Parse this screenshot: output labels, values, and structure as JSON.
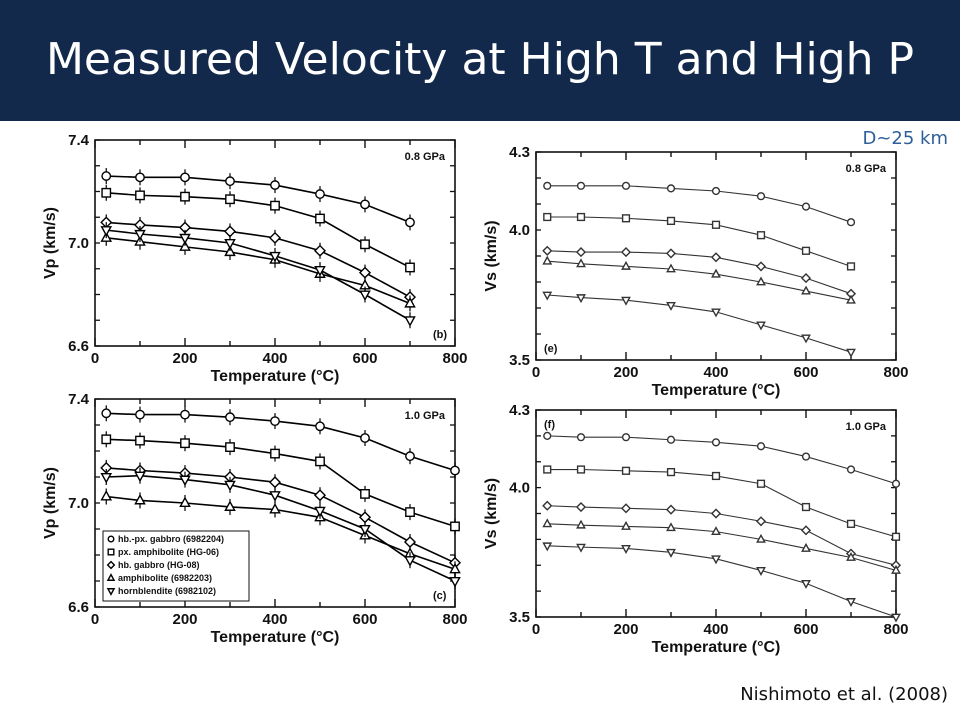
{
  "slide": {
    "title": "Measured Velocity at High T and High P",
    "depth_note": "D~25 km",
    "citation": "Nishimoto et al. (2008)",
    "colors": {
      "header_bg": "#13294b",
      "title_text": "#ffffff",
      "depth_note": "#2e5f9a"
    }
  },
  "chart_data": [
    {
      "id": "b",
      "type": "line",
      "panel_label": "(b)",
      "pressure_label": "0.8 GPa",
      "xlabel": "Temperature (°C)",
      "ylabel": "Vp (km/s)",
      "xlim": [
        0,
        800
      ],
      "ylim": [
        6.6,
        7.4
      ],
      "xticks": [
        "0",
        "200",
        "400",
        "600",
        "800"
      ],
      "yticks": [
        {
          "v": 6.6,
          "label": "6.6"
        },
        {
          "v": 7.0,
          "label": "7.0"
        },
        {
          "v": 7.4,
          "label": "7.4"
        }
      ],
      "grid": false,
      "series": [
        {
          "marker": "circle",
          "x": [
            25,
            100,
            200,
            300,
            400,
            500,
            600,
            700
          ],
          "y": [
            7.26,
            7.255,
            7.255,
            7.24,
            7.225,
            7.19,
            7.15,
            7.08
          ]
        },
        {
          "marker": "square",
          "x": [
            25,
            100,
            200,
            300,
            400,
            500,
            600,
            700
          ],
          "y": [
            7.195,
            7.185,
            7.18,
            7.17,
            7.145,
            7.095,
            6.995,
            6.905
          ]
        },
        {
          "marker": "diamond",
          "x": [
            25,
            100,
            200,
            300,
            400,
            500,
            600,
            700
          ],
          "y": [
            7.08,
            7.07,
            7.06,
            7.045,
            7.02,
            6.97,
            6.885,
            6.79
          ]
        },
        {
          "marker": "triangle-up",
          "x": [
            25,
            100,
            200,
            300,
            400,
            500,
            600,
            700
          ],
          "y": [
            7.02,
            7.005,
            6.985,
            6.965,
            6.935,
            6.88,
            6.835,
            6.765
          ]
        },
        {
          "marker": "triangle-down",
          "x": [
            25,
            100,
            200,
            300,
            400,
            500,
            600,
            700
          ],
          "y": [
            7.05,
            7.035,
            7.02,
            7.0,
            6.95,
            6.895,
            6.8,
            6.7
          ]
        }
      ]
    },
    {
      "id": "e",
      "type": "line",
      "panel_label": "(e)",
      "pressure_label": "0.8 GPa",
      "xlabel": "Temperature (°C)",
      "ylabel": "Vs (km/s)",
      "xlim": [
        0,
        800
      ],
      "ylim": [
        3.5,
        4.3
      ],
      "xticks": [
        "0",
        "200",
        "400",
        "600",
        "800"
      ],
      "yticks": [
        {
          "v": 3.5,
          "label": "3.5"
        },
        {
          "v": 4.0,
          "label": "4.0"
        },
        {
          "v": 4.3,
          "label": "4.3"
        }
      ],
      "grid": false,
      "series": [
        {
          "marker": "circle",
          "x": [
            25,
            100,
            200,
            300,
            400,
            500,
            600,
            700
          ],
          "y": [
            4.17,
            4.17,
            4.17,
            4.16,
            4.15,
            4.13,
            4.09,
            4.03
          ]
        },
        {
          "marker": "square",
          "x": [
            25,
            100,
            200,
            300,
            400,
            500,
            600,
            700
          ],
          "y": [
            4.05,
            4.05,
            4.045,
            4.035,
            4.02,
            3.98,
            3.92,
            3.86
          ]
        },
        {
          "marker": "diamond",
          "x": [
            25,
            100,
            200,
            300,
            400,
            500,
            600,
            700
          ],
          "y": [
            3.92,
            3.915,
            3.915,
            3.91,
            3.895,
            3.86,
            3.815,
            3.755
          ]
        },
        {
          "marker": "triangle-up",
          "x": [
            25,
            100,
            200,
            300,
            400,
            500,
            600,
            700
          ],
          "y": [
            3.88,
            3.87,
            3.86,
            3.85,
            3.83,
            3.8,
            3.765,
            3.73
          ]
        },
        {
          "marker": "triangle-down",
          "x": [
            25,
            100,
            200,
            300,
            400,
            500,
            600,
            700
          ],
          "y": [
            3.75,
            3.74,
            3.73,
            3.71,
            3.685,
            3.635,
            3.585,
            3.53
          ]
        }
      ]
    },
    {
      "id": "c",
      "type": "line",
      "panel_label": "(c)",
      "pressure_label": "1.0 GPa",
      "xlabel": "Temperature (°C)",
      "ylabel": "Vp (km/s)",
      "xlim": [
        0,
        800
      ],
      "ylim": [
        6.6,
        7.4
      ],
      "xticks": [
        "0",
        "200",
        "400",
        "600",
        "800"
      ],
      "yticks": [
        {
          "v": 6.6,
          "label": "6.6"
        },
        {
          "v": 7.0,
          "label": "7.0"
        },
        {
          "v": 7.4,
          "label": "7.4"
        }
      ],
      "grid": false,
      "legend_position": "bottom-left",
      "legend": [
        "hb.-px. gabbro (6982204)",
        "px. amphibolite (HG-06)",
        "hb. gabbro (HG-08)",
        "amphibolite (6982203)",
        "hornblendite (6982102)"
      ],
      "series": [
        {
          "name": "hb.-px. gabbro (6982204)",
          "marker": "circle",
          "x": [
            25,
            100,
            200,
            300,
            400,
            500,
            600,
            700,
            800
          ],
          "y": [
            7.345,
            7.34,
            7.34,
            7.33,
            7.315,
            7.295,
            7.25,
            7.18,
            7.125
          ]
        },
        {
          "name": "px. amphibolite (HG-06)",
          "marker": "square",
          "x": [
            25,
            100,
            200,
            300,
            400,
            500,
            600,
            700,
            800
          ],
          "y": [
            7.245,
            7.24,
            7.23,
            7.215,
            7.19,
            7.16,
            7.035,
            6.965,
            6.91
          ]
        },
        {
          "name": "hb. gabbro (HG-08)",
          "marker": "diamond",
          "x": [
            25,
            100,
            200,
            300,
            400,
            500,
            600,
            700,
            800
          ],
          "y": [
            7.135,
            7.125,
            7.115,
            7.1,
            7.08,
            7.03,
            6.945,
            6.85,
            6.77
          ]
        },
        {
          "name": "amphibolite (6982203)",
          "marker": "triangle-up",
          "x": [
            25,
            100,
            200,
            300,
            400,
            500,
            600,
            700,
            800
          ],
          "y": [
            7.025,
            7.01,
            7.0,
            6.985,
            6.975,
            6.945,
            6.875,
            6.805,
            6.745
          ]
        },
        {
          "name": "hornblendite (6982102)",
          "marker": "triangle-down",
          "x": [
            25,
            100,
            200,
            300,
            400,
            500,
            600,
            700,
            800
          ],
          "y": [
            7.1,
            7.105,
            7.09,
            7.07,
            7.03,
            6.97,
            6.9,
            6.78,
            6.7
          ]
        }
      ]
    },
    {
      "id": "f",
      "type": "line",
      "panel_label": "(f)",
      "pressure_label": "1.0 GPa",
      "xlabel": "Temperature (°C)",
      "ylabel": "Vs (km/s)",
      "xlim": [
        0,
        800
      ],
      "ylim": [
        3.5,
        4.3
      ],
      "xticks": [
        "0",
        "200",
        "400",
        "600",
        "800"
      ],
      "yticks": [
        {
          "v": 3.5,
          "label": "3.5"
        },
        {
          "v": 4.0,
          "label": "4.0"
        },
        {
          "v": 4.3,
          "label": "4.3"
        }
      ],
      "grid": false,
      "series": [
        {
          "marker": "circle",
          "x": [
            25,
            100,
            200,
            300,
            400,
            500,
            600,
            700,
            800
          ],
          "y": [
            4.2,
            4.195,
            4.195,
            4.185,
            4.175,
            4.16,
            4.12,
            4.07,
            4.015
          ]
        },
        {
          "marker": "square",
          "x": [
            25,
            100,
            200,
            300,
            400,
            500,
            600,
            700,
            800
          ],
          "y": [
            4.07,
            4.07,
            4.065,
            4.06,
            4.045,
            4.015,
            3.925,
            3.86,
            3.81
          ]
        },
        {
          "marker": "diamond",
          "x": [
            25,
            100,
            200,
            300,
            400,
            500,
            600,
            700,
            800
          ],
          "y": [
            3.93,
            3.925,
            3.92,
            3.915,
            3.9,
            3.87,
            3.835,
            3.745,
            3.7
          ]
        },
        {
          "marker": "triangle-up",
          "x": [
            25,
            100,
            200,
            300,
            400,
            500,
            600,
            700,
            800
          ],
          "y": [
            3.86,
            3.855,
            3.85,
            3.845,
            3.83,
            3.8,
            3.765,
            3.73,
            3.68
          ]
        },
        {
          "marker": "triangle-down",
          "x": [
            25,
            100,
            200,
            300,
            400,
            500,
            600,
            700,
            800
          ],
          "y": [
            3.775,
            3.77,
            3.765,
            3.75,
            3.725,
            3.68,
            3.63,
            3.56,
            3.5
          ]
        }
      ]
    }
  ]
}
